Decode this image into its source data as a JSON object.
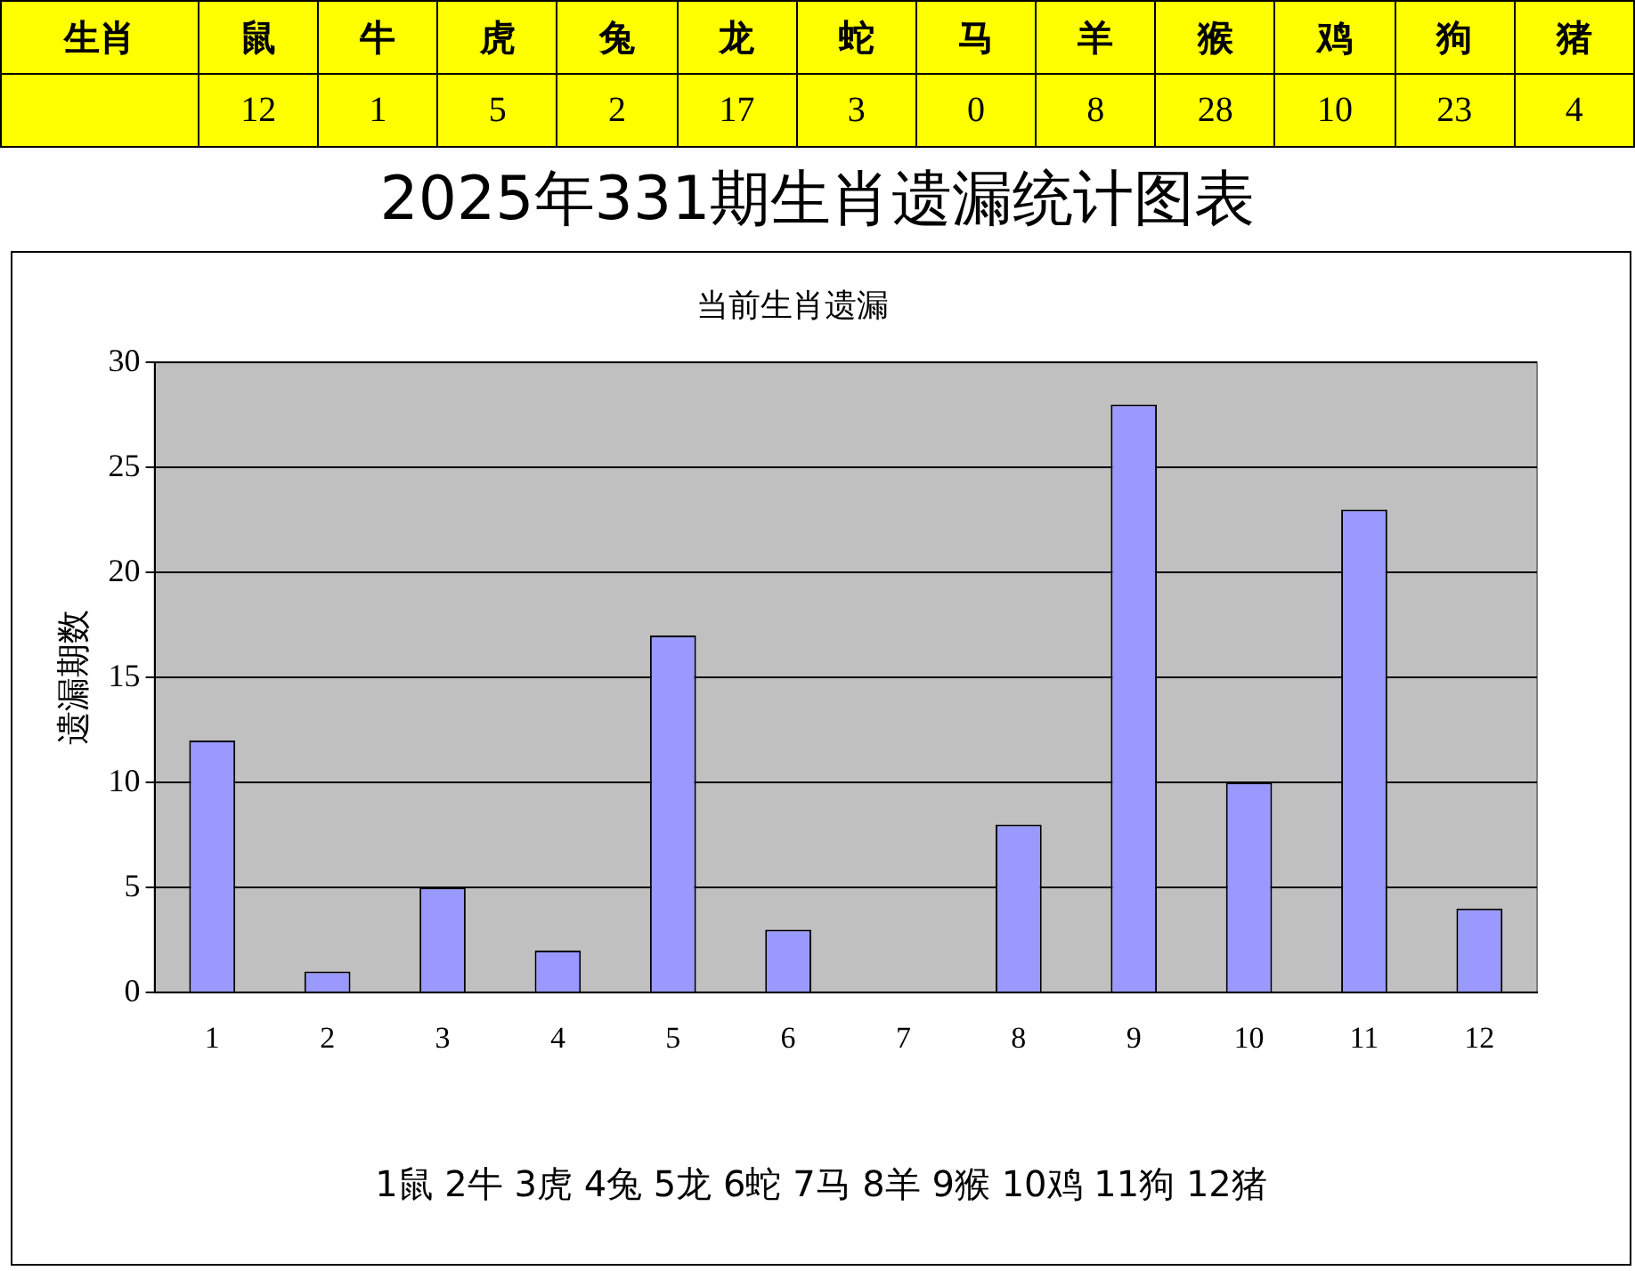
{
  "chart_data": [
    {
      "type": "other",
      "annotations": [
        "生肖"
      ],
      "categories": [
        "鼠",
        "牛",
        "虎",
        "兔",
        "龙",
        "蛇",
        "马",
        "羊",
        "猴",
        "鸡",
        "狗",
        "猪"
      ],
      "values": [
        12,
        1,
        5,
        2,
        17,
        3,
        0,
        8,
        28,
        10,
        23,
        4
      ],
      "data_labels": true
    },
    {
      "type": "bar",
      "title": "2025年331期生肖遗漏统计图表",
      "subtitle": "当前生肖遗漏",
      "ylabel": "遗漏期数",
      "categories": [
        "1",
        "2",
        "3",
        "4",
        "5",
        "6",
        "7",
        "8",
        "9",
        "10",
        "11",
        "12"
      ],
      "values": [
        12,
        1,
        5,
        2,
        17,
        3,
        0,
        8,
        28,
        10,
        23,
        4
      ],
      "color": "#9999ff",
      "ylim": [
        0,
        30
      ],
      "yticks": [
        0,
        5,
        10,
        15,
        20,
        25,
        30
      ],
      "grid": "y",
      "legend": false,
      "annotations": [
        "1鼠  2牛  3虎  4兔  5龙  6蛇  7马  8羊  9猴  10鸡  11狗  12猪"
      ]
    }
  ]
}
